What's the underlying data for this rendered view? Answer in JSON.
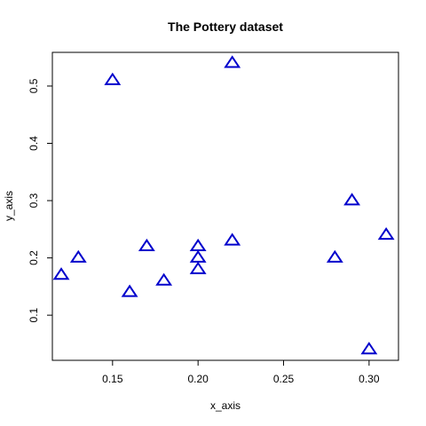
{
  "chart_data": {
    "type": "scatter",
    "title": "The Pottery dataset",
    "xlabel": "x_axis",
    "ylabel": "y_axis",
    "xlim": [
      0.1148,
      0.3172
    ],
    "ylim": [
      0.0212,
      0.5588
    ],
    "xticks": [
      0.15,
      0.2,
      0.25,
      0.3
    ],
    "xtick_labels": [
      "0.15",
      "0.20",
      "0.25",
      "0.30"
    ],
    "yticks": [
      0.1,
      0.2,
      0.3,
      0.4,
      0.5
    ],
    "ytick_labels": [
      "0.1",
      "0.2",
      "0.3",
      "0.4",
      "0.5"
    ],
    "grid": false,
    "marker": "open-triangle",
    "marker_color": "#0000cc",
    "points": [
      {
        "x": 0.12,
        "y": 0.17
      },
      {
        "x": 0.13,
        "y": 0.2
      },
      {
        "x": 0.15,
        "y": 0.51
      },
      {
        "x": 0.16,
        "y": 0.14
      },
      {
        "x": 0.17,
        "y": 0.22
      },
      {
        "x": 0.18,
        "y": 0.16
      },
      {
        "x": 0.2,
        "y": 0.22
      },
      {
        "x": 0.2,
        "y": 0.2
      },
      {
        "x": 0.2,
        "y": 0.18
      },
      {
        "x": 0.22,
        "y": 0.54
      },
      {
        "x": 0.22,
        "y": 0.23
      },
      {
        "x": 0.28,
        "y": 0.2
      },
      {
        "x": 0.29,
        "y": 0.3
      },
      {
        "x": 0.3,
        "y": 0.04
      },
      {
        "x": 0.31,
        "y": 0.24
      }
    ]
  }
}
